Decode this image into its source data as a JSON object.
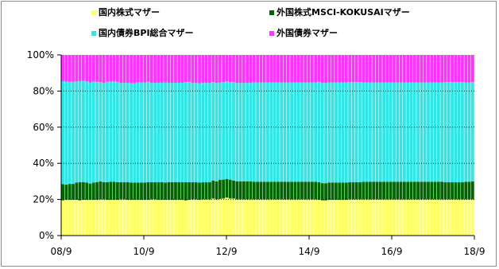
{
  "chart_data": {
    "type": "bar",
    "stacked": true,
    "normalized_percent": true,
    "x_tick_labels": [
      "08/9",
      "10/9",
      "12/9",
      "14/9",
      "16/9",
      "18/9"
    ],
    "y_tick_labels": [
      "0%",
      "20%",
      "40%",
      "60%",
      "80%",
      "100%"
    ],
    "ylim": [
      0,
      100
    ],
    "grid": true,
    "legend_position": "top",
    "period": {
      "start": "2008-09",
      "end": "2018-09",
      "frequency": "monthly"
    },
    "series": [
      {
        "name": "国内株式マザー",
        "color": "#FFFF66",
        "values": [
          19.5,
          19.8,
          19.8,
          19.8,
          19.8,
          19.5,
          19.8,
          19.8,
          19.8,
          19.8,
          19.8,
          20.0,
          20.0,
          19.8,
          19.8,
          19.8,
          19.8,
          20.0,
          20.0,
          19.8,
          19.8,
          19.8,
          19.8,
          19.8,
          19.8,
          19.8,
          20.0,
          20.0,
          19.8,
          19.8,
          19.8,
          19.8,
          19.8,
          19.8,
          19.8,
          19.8,
          19.5,
          19.8,
          20.0,
          20.0,
          19.8,
          20.0,
          20.0,
          20.0,
          20.5,
          20.0,
          20.3,
          20.5,
          21.0,
          20.5,
          20.5,
          20.0,
          20.0,
          20.0,
          20.0,
          20.0,
          20.0,
          20.0,
          20.0,
          20.0,
          20.0,
          20.0,
          20.0,
          20.0,
          20.0,
          20.0,
          20.0,
          20.0,
          20.0,
          20.0,
          20.0,
          20.0,
          20.0,
          20.0,
          20.0,
          19.8,
          19.5,
          19.5,
          19.8,
          19.8,
          19.8,
          19.8,
          19.8,
          19.8,
          20.0,
          20.0,
          20.0,
          20.0,
          20.0,
          20.0,
          20.0,
          20.0,
          20.0,
          20.0,
          20.0,
          20.0,
          20.0,
          20.0,
          20.0,
          20.0,
          20.0,
          20.0,
          20.0,
          20.0,
          20.0,
          20.0,
          20.0,
          20.0,
          20.0,
          20.0,
          20.0,
          20.0,
          20.0,
          20.0,
          20.0,
          20.0,
          20.0,
          20.0,
          20.0,
          20.0,
          20.0
        ]
      },
      {
        "name": "外国株式MSCI-KOKUSAIマザー",
        "color": "#006600",
        "values": [
          9.0,
          8.5,
          8.8,
          8.8,
          9.5,
          10.0,
          9.8,
          9.5,
          9.0,
          9.5,
          9.8,
          10.0,
          9.5,
          9.8,
          10.0,
          10.0,
          9.8,
          9.5,
          9.5,
          9.8,
          9.5,
          9.5,
          9.5,
          9.5,
          9.5,
          9.8,
          9.5,
          9.5,
          9.8,
          9.8,
          9.5,
          9.8,
          9.8,
          9.8,
          9.8,
          9.8,
          10.0,
          9.8,
          9.5,
          9.5,
          9.5,
          9.5,
          9.5,
          9.5,
          10.0,
          10.0,
          10.5,
          10.5,
          10.3,
          10.5,
          10.0,
          10.0,
          10.0,
          10.0,
          10.0,
          10.0,
          9.8,
          9.8,
          9.8,
          9.8,
          9.8,
          9.8,
          9.8,
          9.8,
          9.8,
          9.8,
          9.8,
          9.8,
          9.8,
          9.8,
          9.8,
          9.8,
          9.8,
          9.8,
          9.8,
          9.8,
          9.5,
          9.5,
          9.5,
          9.5,
          9.5,
          9.5,
          9.5,
          9.5,
          9.5,
          9.5,
          9.5,
          9.5,
          9.8,
          9.8,
          9.8,
          9.8,
          9.8,
          9.8,
          9.8,
          9.8,
          9.8,
          9.8,
          9.8,
          9.8,
          9.8,
          9.8,
          9.8,
          9.8,
          9.8,
          9.8,
          9.8,
          9.8,
          9.8,
          9.8,
          9.8,
          9.8,
          9.5,
          9.5,
          9.5,
          9.5,
          9.5,
          9.5,
          9.8,
          9.8,
          10.0
        ]
      },
      {
        "name": "国内債券BPI総合マザー",
        "color": "#33E6E6",
        "values": [
          57.0,
          57.0,
          56.5,
          56.5,
          56.0,
          56.0,
          56.0,
          56.0,
          56.0,
          56.0,
          55.5,
          55.0,
          55.0,
          55.5,
          55.5,
          55.5,
          55.5,
          55.0,
          55.0,
          55.0,
          55.0,
          55.0,
          55.5,
          55.5,
          55.5,
          55.5,
          55.0,
          55.0,
          55.0,
          55.0,
          55.5,
          55.0,
          55.0,
          55.0,
          55.0,
          55.0,
          55.5,
          55.5,
          55.0,
          55.0,
          55.0,
          55.0,
          55.0,
          55.0,
          54.5,
          54.5,
          54.0,
          54.0,
          54.0,
          54.0,
          54.5,
          54.5,
          54.5,
          54.5,
          54.5,
          54.5,
          55.0,
          55.0,
          55.0,
          55.0,
          55.0,
          55.0,
          55.0,
          55.0,
          55.0,
          55.0,
          55.0,
          55.0,
          55.0,
          55.0,
          55.0,
          55.0,
          55.0,
          55.0,
          55.0,
          55.5,
          55.5,
          55.5,
          55.5,
          55.5,
          55.5,
          55.5,
          55.5,
          55.5,
          55.5,
          55.5,
          55.5,
          55.5,
          55.0,
          55.0,
          55.0,
          55.0,
          55.0,
          55.0,
          55.0,
          55.0,
          55.0,
          55.0,
          55.0,
          55.0,
          55.0,
          55.0,
          55.0,
          55.0,
          55.0,
          55.0,
          55.0,
          55.0,
          55.0,
          55.0,
          55.0,
          55.0,
          55.5,
          55.5,
          55.5,
          55.5,
          55.5,
          55.5,
          55.0,
          55.0,
          55.0
        ]
      },
      {
        "name": "外国債券マザー",
        "color": "#FF33FF",
        "values": [
          14.5,
          14.7,
          14.9,
          14.9,
          14.7,
          14.5,
          14.4,
          14.7,
          15.2,
          14.7,
          14.9,
          15.0,
          15.5,
          14.9,
          14.7,
          14.7,
          14.9,
          15.5,
          15.5,
          15.4,
          15.7,
          15.7,
          15.2,
          15.2,
          15.2,
          14.9,
          15.5,
          15.5,
          15.4,
          15.4,
          15.2,
          15.4,
          15.4,
          15.4,
          15.4,
          15.4,
          15.0,
          14.9,
          15.5,
          15.5,
          15.7,
          15.5,
          15.5,
          15.5,
          15.0,
          15.5,
          15.2,
          15.0,
          14.7,
          15.0,
          15.0,
          15.5,
          15.5,
          15.5,
          15.5,
          15.5,
          15.2,
          15.2,
          15.2,
          15.2,
          15.2,
          15.2,
          15.2,
          15.2,
          15.2,
          15.2,
          15.2,
          15.2,
          15.2,
          15.2,
          15.2,
          15.2,
          15.2,
          15.2,
          15.2,
          14.9,
          15.5,
          15.5,
          15.2,
          15.2,
          15.2,
          15.2,
          15.2,
          15.2,
          15.0,
          15.0,
          15.0,
          15.0,
          15.2,
          15.2,
          15.2,
          15.2,
          15.2,
          15.2,
          15.2,
          15.2,
          15.2,
          15.2,
          15.2,
          15.2,
          15.2,
          15.2,
          15.2,
          15.2,
          15.2,
          15.2,
          15.2,
          15.2,
          15.2,
          15.2,
          15.2,
          15.2,
          15.0,
          15.0,
          15.0,
          15.0,
          15.0,
          15.0,
          15.2,
          15.2,
          15.0
        ]
      }
    ]
  }
}
